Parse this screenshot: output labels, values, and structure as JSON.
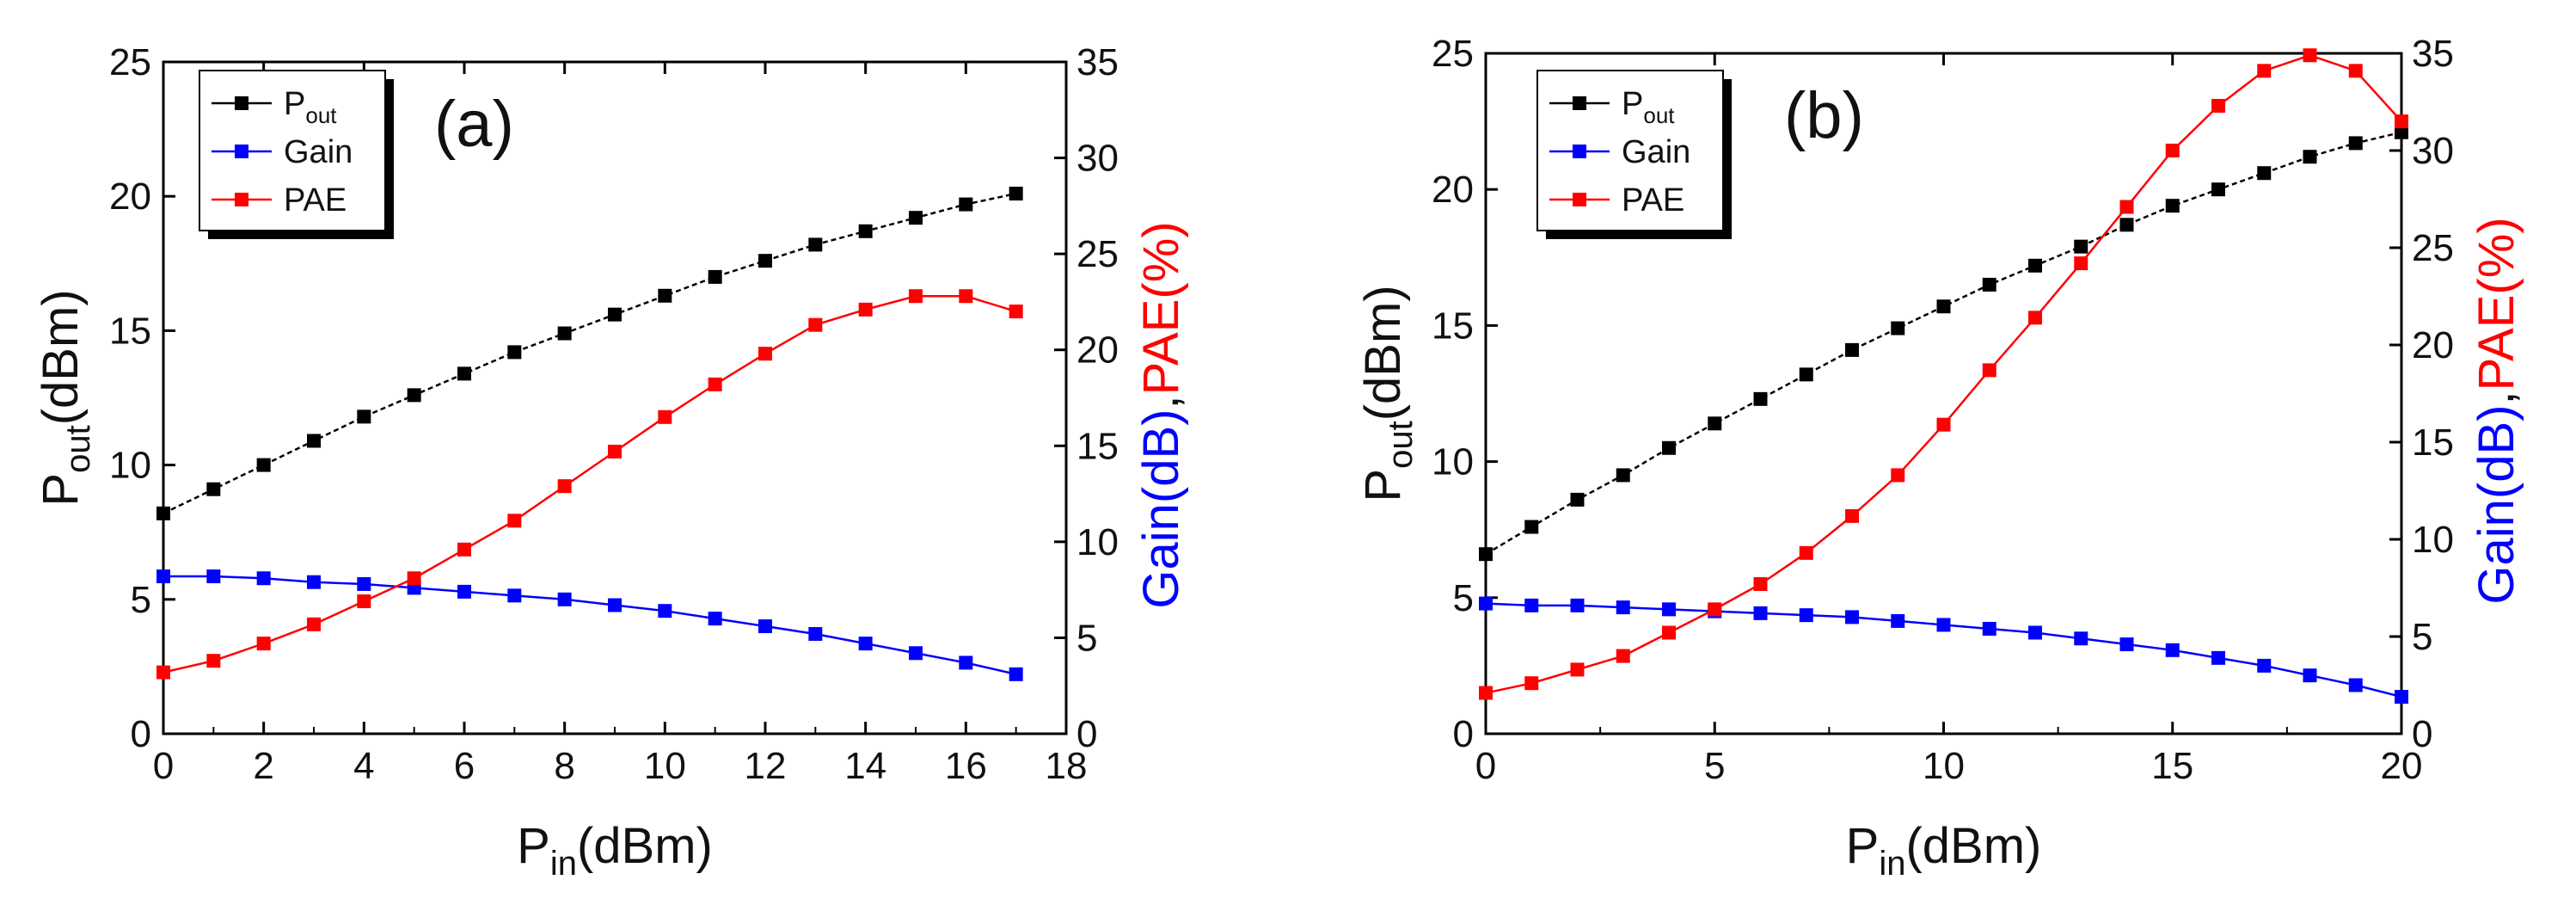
{
  "chart_data": [
    {
      "type": "line",
      "panel_label": "(a)",
      "x": [
        0,
        1,
        2,
        3,
        4,
        5,
        6,
        7,
        8,
        9,
        10,
        11,
        12,
        13,
        14,
        15,
        16,
        17
      ],
      "xlim": [
        0,
        18
      ],
      "xticks": [
        "0",
        "2",
        "4",
        "6",
        "8",
        "10",
        "12",
        "14",
        "16",
        "18"
      ],
      "xticks_values": [
        0,
        2,
        4,
        6,
        8,
        10,
        12,
        14,
        16,
        18
      ],
      "xlabel": {
        "main": "P",
        "sub": "in",
        "rest": "(dBm)"
      },
      "ylabel_left": {
        "main": "P",
        "sub": "out",
        "rest": "(dBm)"
      },
      "ylim_left": [
        0,
        25
      ],
      "yticks_left": [
        "0",
        "5",
        "10",
        "15",
        "20",
        "25"
      ],
      "yticks_left_values": [
        0,
        5,
        10,
        15,
        20,
        25
      ],
      "ylabel_right": {
        "part1": "Gain(dB)",
        "sep": ",",
        "part2": "PAE(%)"
      },
      "ylim_right": [
        0,
        35
      ],
      "yticks_right": [
        "0",
        "5",
        "10",
        "15",
        "20",
        "25",
        "30",
        "35"
      ],
      "yticks_right_values": [
        0,
        5,
        10,
        15,
        20,
        25,
        30,
        35
      ],
      "series": [
        {
          "name": "P",
          "name_sub": "out",
          "axis": "left",
          "color": "#000000",
          "values": [
            8.2,
            9.1,
            10.0,
            10.9,
            11.8,
            12.6,
            13.4,
            14.2,
            14.9,
            15.6,
            16.3,
            17.0,
            17.6,
            18.2,
            18.7,
            19.2,
            19.7,
            20.1
          ]
        },
        {
          "name": "Gain",
          "name_sub": "",
          "axis": "right",
          "color": "#0000ff",
          "values": [
            8.2,
            8.2,
            8.1,
            7.9,
            7.8,
            7.6,
            7.4,
            7.2,
            7.0,
            6.7,
            6.4,
            6.0,
            5.6,
            5.2,
            4.7,
            4.2,
            3.7,
            3.1
          ]
        },
        {
          "name": "PAE",
          "name_sub": "",
          "axis": "right",
          "color": "#ff0000",
          "values": [
            3.2,
            3.8,
            4.7,
            5.7,
            6.9,
            8.1,
            9.6,
            11.1,
            12.9,
            14.7,
            16.5,
            18.2,
            19.8,
            21.3,
            22.1,
            22.8,
            22.8,
            22.0
          ]
        }
      ],
      "legend_position": "top-left"
    },
    {
      "type": "line",
      "panel_label": "(b)",
      "x": [
        0,
        1,
        2,
        3,
        4,
        5,
        6,
        7,
        8,
        9,
        10,
        11,
        12,
        13,
        14,
        15,
        16,
        17,
        18,
        19,
        20
      ],
      "xlim": [
        0,
        20
      ],
      "xticks": [
        "0",
        "5",
        "10",
        "15",
        "20"
      ],
      "xticks_values": [
        0,
        5,
        10,
        15,
        20
      ],
      "xlabel": {
        "main": "P",
        "sub": "in",
        "rest": "(dBm)"
      },
      "ylabel_left": {
        "main": "P",
        "sub": "out",
        "rest": "(dBm)"
      },
      "ylim_left": [
        0,
        25
      ],
      "yticks_left": [
        "0",
        "5",
        "10",
        "15",
        "20",
        "25"
      ],
      "yticks_left_values": [
        0,
        5,
        10,
        15,
        20,
        25
      ],
      "ylabel_right": {
        "part1": "Gain(dB)",
        "sep": ",",
        "part2": "PAE(%)"
      },
      "ylim_right": [
        0,
        35
      ],
      "yticks_right": [
        "0",
        "5",
        "10",
        "15",
        "20",
        "25",
        "30",
        "35"
      ],
      "yticks_right_values": [
        0,
        5,
        10,
        15,
        20,
        25,
        30,
        35
      ],
      "series": [
        {
          "name": "P",
          "name_sub": "out",
          "axis": "left",
          "color": "#000000",
          "values": [
            6.6,
            7.6,
            8.6,
            9.5,
            10.5,
            11.4,
            12.3,
            13.2,
            14.1,
            14.9,
            15.7,
            16.5,
            17.2,
            17.9,
            18.7,
            19.4,
            20.0,
            20.6,
            21.2,
            21.7,
            22.1
          ]
        },
        {
          "name": "Gain",
          "name_sub": "",
          "axis": "right",
          "color": "#0000ff",
          "values": [
            6.7,
            6.6,
            6.6,
            6.5,
            6.4,
            6.3,
            6.2,
            6.1,
            6.0,
            5.8,
            5.6,
            5.4,
            5.2,
            4.9,
            4.6,
            4.3,
            3.9,
            3.5,
            3.0,
            2.5,
            1.9
          ]
        },
        {
          "name": "PAE",
          "name_sub": "",
          "axis": "right",
          "color": "#ff0000",
          "values": [
            2.1,
            2.6,
            3.3,
            4.0,
            5.2,
            6.4,
            7.7,
            9.3,
            11.2,
            13.3,
            15.9,
            18.7,
            21.4,
            24.2,
            27.1,
            30.0,
            32.3,
            34.1,
            34.9,
            34.1,
            31.5
          ]
        }
      ],
      "legend_position": "top-left"
    }
  ]
}
